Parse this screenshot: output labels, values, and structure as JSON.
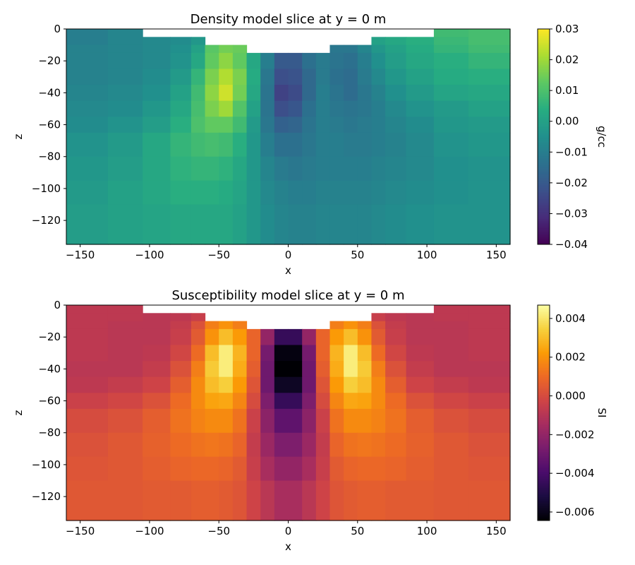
{
  "chart_data": [
    {
      "type": "heatmap",
      "title": "Density model slice at y = 0 m",
      "xlabel": "x",
      "ylabel": "z",
      "xlim": [
        -160,
        160
      ],
      "ylim": [
        -135,
        0
      ],
      "xticks": [
        "−150",
        "−100",
        "−50",
        "0",
        "50",
        "100",
        "150"
      ],
      "xtick_values": [
        -150,
        -100,
        -50,
        0,
        50,
        100,
        150
      ],
      "yticks": [
        "0",
        "−20",
        "−40",
        "−60",
        "−80",
        "−100",
        "−120"
      ],
      "ytick_values": [
        0,
        -20,
        -40,
        -60,
        -80,
        -100,
        -120
      ],
      "colormap": "viridis",
      "colorbar": {
        "label": "g/cc",
        "range": [
          -0.04,
          0.03
        ],
        "ticks": [
          "0.03",
          "0.02",
          "0.01",
          "0.00",
          "−0.01",
          "−0.02",
          "−0.03",
          "−0.04"
        ],
        "tick_values": [
          0.03,
          0.02,
          0.01,
          0.0,
          -0.01,
          -0.02,
          -0.03,
          -0.04
        ]
      },
      "x_edges": [
        -160,
        -130,
        -105,
        -85,
        -70,
        -60,
        -50,
        -40,
        -30,
        -20,
        -10,
        0,
        10,
        20,
        30,
        40,
        50,
        60,
        70,
        85,
        105,
        130,
        160
      ],
      "z_edges": [
        0,
        -5,
        -10,
        -15,
        -25,
        -35,
        -45,
        -55,
        -65,
        -80,
        -95,
        -110,
        -135
      ],
      "values": [
        [
          -0.01,
          -0.008,
          null,
          null,
          null,
          null,
          null,
          null,
          null,
          null,
          null,
          null,
          null,
          null,
          null,
          null,
          null,
          null,
          null,
          null,
          0.008,
          0.009
        ],
        [
          -0.01,
          -0.008,
          -0.007,
          -0.006,
          -0.003,
          null,
          null,
          null,
          null,
          null,
          null,
          null,
          null,
          null,
          null,
          null,
          null,
          0.0,
          0.002,
          0.004,
          0.007,
          0.009
        ],
        [
          -0.009,
          -0.008,
          -0.007,
          -0.005,
          0.0,
          0.012,
          0.015,
          0.014,
          null,
          null,
          null,
          null,
          null,
          null,
          -0.012,
          -0.012,
          -0.008,
          -0.003,
          0.0,
          0.003,
          0.006,
          0.008
        ],
        [
          -0.009,
          -0.008,
          -0.007,
          -0.004,
          0.002,
          0.013,
          0.018,
          0.013,
          0.002,
          -0.01,
          -0.02,
          -0.02,
          -0.014,
          -0.011,
          -0.013,
          -0.014,
          -0.01,
          -0.005,
          -0.001,
          0.002,
          0.004,
          0.006
        ],
        [
          -0.009,
          -0.008,
          -0.006,
          -0.002,
          0.006,
          0.016,
          0.022,
          0.016,
          0.003,
          -0.012,
          -0.023,
          -0.022,
          -0.016,
          -0.011,
          -0.014,
          -0.015,
          -0.011,
          -0.007,
          -0.003,
          0.0,
          0.003,
          0.004
        ],
        [
          -0.008,
          -0.007,
          -0.005,
          0.0,
          0.008,
          0.018,
          0.025,
          0.015,
          0.002,
          -0.013,
          -0.026,
          -0.024,
          -0.016,
          -0.01,
          -0.013,
          -0.015,
          -0.012,
          -0.009,
          -0.005,
          -0.002,
          0.001,
          0.002
        ],
        [
          -0.007,
          -0.006,
          -0.003,
          0.002,
          0.009,
          0.016,
          0.02,
          0.011,
          0.0,
          -0.013,
          -0.023,
          -0.021,
          -0.014,
          -0.01,
          -0.012,
          -0.013,
          -0.012,
          -0.01,
          -0.007,
          -0.004,
          -0.002,
          0.0
        ],
        [
          -0.006,
          -0.004,
          -0.001,
          0.004,
          0.01,
          0.013,
          0.013,
          0.008,
          -0.002,
          -0.012,
          -0.018,
          -0.017,
          -0.013,
          -0.01,
          -0.011,
          -0.012,
          -0.011,
          -0.01,
          -0.008,
          -0.006,
          -0.003,
          -0.002
        ],
        [
          -0.004,
          -0.002,
          0.002,
          0.006,
          0.008,
          0.009,
          0.008,
          0.004,
          -0.003,
          -0.01,
          -0.014,
          -0.014,
          -0.012,
          -0.01,
          -0.01,
          -0.011,
          -0.011,
          -0.01,
          -0.009,
          -0.007,
          -0.004,
          -0.003
        ],
        [
          -0.003,
          -0.001,
          0.002,
          0.005,
          0.006,
          0.006,
          0.005,
          0.002,
          -0.003,
          -0.008,
          -0.011,
          -0.012,
          -0.011,
          -0.01,
          -0.01,
          -0.01,
          -0.01,
          -0.009,
          -0.008,
          -0.007,
          -0.005,
          -0.004
        ],
        [
          -0.002,
          0.0,
          0.002,
          0.004,
          0.004,
          0.004,
          0.003,
          0.001,
          -0.003,
          -0.007,
          -0.009,
          -0.01,
          -0.01,
          -0.009,
          -0.009,
          -0.009,
          -0.009,
          -0.008,
          -0.007,
          -0.006,
          -0.005,
          -0.004
        ],
        [
          -0.001,
          0.0,
          0.001,
          0.002,
          0.002,
          0.002,
          0.002,
          0.0,
          -0.003,
          -0.006,
          -0.008,
          -0.009,
          -0.009,
          -0.008,
          -0.008,
          -0.008,
          -0.008,
          -0.007,
          -0.006,
          -0.005,
          -0.004,
          -0.004
        ]
      ]
    },
    {
      "type": "heatmap",
      "title": "Susceptibility model slice at y = 0 m",
      "xlabel": "x",
      "ylabel": "z",
      "xlim": [
        -160,
        160
      ],
      "ylim": [
        -135,
        0
      ],
      "xticks": [
        "−150",
        "−100",
        "−50",
        "0",
        "50",
        "100",
        "150"
      ],
      "xtick_values": [
        -150,
        -100,
        -50,
        0,
        50,
        100,
        150
      ],
      "yticks": [
        "0",
        "−20",
        "−40",
        "−60",
        "−80",
        "−100",
        "−120"
      ],
      "ytick_values": [
        0,
        -20,
        -40,
        -60,
        -80,
        -100,
        -120
      ],
      "colormap": "inferno",
      "colorbar": {
        "label": "SI",
        "range": [
          -0.00644,
          0.00469
        ],
        "ticks": [
          "0.004",
          "0.002",
          "0.000",
          "−0.002",
          "−0.004",
          "−0.006"
        ],
        "tick_values": [
          0.004,
          0.002,
          0.0,
          -0.002,
          -0.004,
          -0.006
        ]
      },
      "x_edges": [
        -160,
        -130,
        -105,
        -85,
        -70,
        -60,
        -50,
        -40,
        -30,
        -20,
        -10,
        0,
        10,
        20,
        30,
        40,
        50,
        60,
        70,
        85,
        105,
        130,
        160
      ],
      "z_edges": [
        0,
        -5,
        -10,
        -15,
        -25,
        -35,
        -45,
        -55,
        -65,
        -80,
        -95,
        -110,
        -135
      ],
      "values": [
        [
          -0.0008,
          -0.0008,
          null,
          null,
          null,
          null,
          null,
          null,
          null,
          null,
          null,
          null,
          null,
          null,
          null,
          null,
          null,
          null,
          null,
          null,
          -0.0008,
          -0.0008
        ],
        [
          -0.0008,
          -0.0008,
          -0.0009,
          -0.0008,
          -0.0005,
          null,
          null,
          null,
          null,
          null,
          null,
          null,
          null,
          null,
          null,
          null,
          null,
          -0.0005,
          -0.0008,
          -0.0009,
          -0.0008,
          -0.0008
        ],
        [
          -0.0008,
          -0.0009,
          -0.0009,
          -0.0006,
          0.0002,
          0.0015,
          0.002,
          0.0015,
          null,
          null,
          null,
          null,
          null,
          null,
          0.0015,
          0.002,
          0.0015,
          0.0002,
          -0.0006,
          -0.0009,
          -0.0009,
          -0.0008
        ],
        [
          -0.0008,
          -0.0009,
          -0.0009,
          -0.0005,
          0.0005,
          0.002,
          0.003,
          0.0022,
          0.0008,
          -0.002,
          -0.0045,
          -0.0045,
          -0.002,
          0.0008,
          0.0022,
          0.003,
          0.002,
          0.0005,
          -0.0005,
          -0.0009,
          -0.0009,
          -0.0008
        ],
        [
          -0.0008,
          -0.0009,
          -0.0008,
          -0.0002,
          0.001,
          0.003,
          0.0042,
          0.0028,
          0.0008,
          -0.0028,
          -0.0062,
          -0.0062,
          -0.0028,
          0.0008,
          0.0028,
          0.0042,
          0.003,
          0.001,
          -0.0002,
          -0.0008,
          -0.0009,
          -0.0008
        ],
        [
          -0.0009,
          -0.0009,
          -0.0006,
          0.0002,
          0.0015,
          0.0033,
          0.0042,
          0.0026,
          0.0006,
          -0.003,
          -0.0065,
          -0.0065,
          -0.003,
          0.0006,
          0.0026,
          0.0042,
          0.0033,
          0.0015,
          0.0002,
          -0.0006,
          -0.0009,
          -0.0009
        ],
        [
          -0.0008,
          -0.0006,
          -0.0003,
          0.0006,
          0.0018,
          0.003,
          0.0034,
          0.0022,
          0.0003,
          -0.003,
          -0.0058,
          -0.0058,
          -0.003,
          0.0003,
          0.0022,
          0.0034,
          0.003,
          0.0018,
          0.0006,
          -0.0003,
          -0.0006,
          -0.0008
        ],
        [
          -0.0004,
          -0.0002,
          0.0002,
          0.001,
          0.0018,
          0.0024,
          0.0025,
          0.0017,
          0.0,
          -0.0026,
          -0.0045,
          -0.0045,
          -0.0026,
          0.0,
          0.0017,
          0.0025,
          0.0024,
          0.0018,
          0.001,
          0.0002,
          -0.0002,
          -0.0004
        ],
        [
          0.0,
          0.0002,
          0.0006,
          0.0012,
          0.0016,
          0.0018,
          0.0018,
          0.0012,
          -0.0004,
          -0.0022,
          -0.0034,
          -0.0034,
          -0.0022,
          -0.0004,
          0.0012,
          0.0018,
          0.0018,
          0.0016,
          0.0012,
          0.0006,
          0.0002,
          0.0
        ],
        [
          0.0002,
          0.0004,
          0.0007,
          0.001,
          0.0012,
          0.0013,
          0.0012,
          0.0008,
          -0.0006,
          -0.0018,
          -0.0026,
          -0.0026,
          -0.0018,
          -0.0006,
          0.0008,
          0.0012,
          0.0013,
          0.0012,
          0.001,
          0.0007,
          0.0004,
          0.0002
        ],
        [
          0.0003,
          0.0004,
          0.0006,
          0.0008,
          0.0009,
          0.0009,
          0.0008,
          0.0005,
          -0.0005,
          -0.0014,
          -0.002,
          -0.002,
          -0.0014,
          -0.0005,
          0.0005,
          0.0008,
          0.0009,
          0.0009,
          0.0008,
          0.0006,
          0.0004,
          0.0003
        ],
        [
          0.0004,
          0.0004,
          0.0005,
          0.0005,
          0.0006,
          0.0006,
          0.0005,
          0.0003,
          -0.0003,
          -0.0009,
          -0.0014,
          -0.0014,
          -0.0009,
          -0.0003,
          0.0003,
          0.0005,
          0.0006,
          0.0006,
          0.0005,
          0.0005,
          0.0004,
          0.0004
        ]
      ]
    }
  ]
}
